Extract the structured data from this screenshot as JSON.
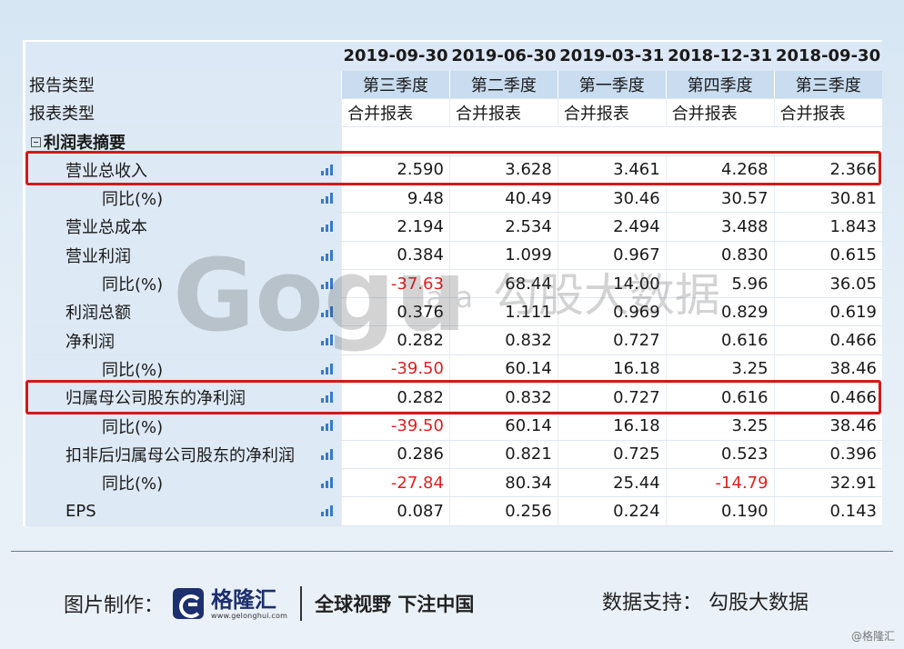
{
  "table": {
    "dates": [
      "2019-09-30",
      "2019-06-30",
      "2019-03-31",
      "2018-12-31",
      "2018-09-30"
    ],
    "report_type_label": "报告类型",
    "report_types": [
      "第三季度",
      "第二季度",
      "第一季度",
      "第四季度",
      "第三季度"
    ],
    "statement_type_label": "报表类型",
    "statement_types": [
      "合并报表",
      "合并报表",
      "合并报表",
      "合并报表",
      "合并报表"
    ],
    "section_label": "利润表摘要",
    "rows": [
      {
        "label": "营业总收入",
        "values": [
          "2.590",
          "3.628",
          "3.461",
          "4.268",
          "2.366"
        ]
      },
      {
        "label": "同比(%)",
        "values": [
          "9.48",
          "40.49",
          "30.46",
          "30.57",
          "30.81"
        ]
      },
      {
        "label": "营业总成本",
        "values": [
          "2.194",
          "2.534",
          "2.494",
          "3.488",
          "1.843"
        ]
      },
      {
        "label": "营业利润",
        "values": [
          "0.384",
          "1.099",
          "0.967",
          "0.830",
          "0.615"
        ]
      },
      {
        "label": "同比(%)",
        "values": [
          "-37.63",
          "68.44",
          "14.00",
          "5.96",
          "36.05"
        ]
      },
      {
        "label": "利润总额",
        "values": [
          "0.376",
          "1.111",
          "0.969",
          "0.829",
          "0.619"
        ]
      },
      {
        "label": "净利润",
        "values": [
          "0.282",
          "0.832",
          "0.727",
          "0.616",
          "0.466"
        ]
      },
      {
        "label": "同比(%)",
        "values": [
          "-39.50",
          "60.14",
          "16.18",
          "3.25",
          "38.46"
        ]
      },
      {
        "label": "归属母公司股东的净利润",
        "values": [
          "0.282",
          "0.832",
          "0.727",
          "0.616",
          "0.466"
        ]
      },
      {
        "label": "同比(%)",
        "values": [
          "-39.50",
          "60.14",
          "16.18",
          "3.25",
          "38.46"
        ]
      },
      {
        "label": "扣非后归属母公司股东的净利润",
        "values": [
          "0.286",
          "0.821",
          "0.725",
          "0.523",
          "0.396"
        ]
      },
      {
        "label": "同比(%)",
        "values": [
          "-27.84",
          "80.34",
          "25.44",
          "-14.79",
          "32.91"
        ]
      },
      {
        "label": "EPS",
        "values": [
          "0.087",
          "0.256",
          "0.224",
          "0.190",
          "0.143"
        ]
      }
    ]
  },
  "watermark": {
    "text_g": "Gogu",
    "text_data": "data",
    "text_cn": "勾股大数据"
  },
  "footer": {
    "made_by_label": "图片制作：",
    "logo_name": "格隆汇",
    "logo_url": "www.gelonghui.com",
    "slogan": "全球视野 下注中国",
    "data_support": "数据支持：  勾股大数据",
    "corner_mark": "@格隆汇"
  },
  "colors": {
    "negative": "#e02020",
    "highlight": "#d11a1a",
    "label_bg": "#dde9f5",
    "chart_icon": "#3a79c8"
  }
}
